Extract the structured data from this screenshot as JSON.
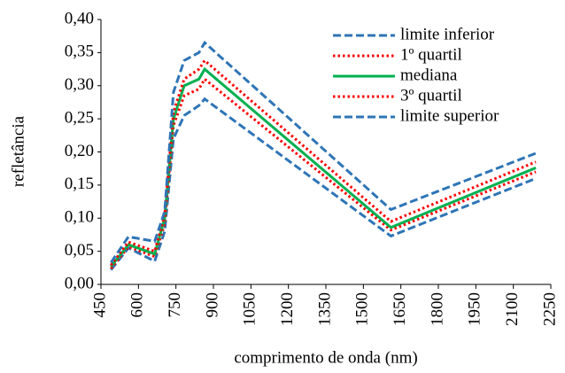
{
  "chart_data": {
    "type": "line",
    "x_label": "comprimento de onda (nm)",
    "y_label": "refletância",
    "x": [
      490,
      560,
      665,
      705,
      740,
      783,
      842,
      865,
      1610,
      2190
    ],
    "series": [
      {
        "name": "limite inferior",
        "color": "#2e75b6",
        "style": "dashed",
        "values": [
          0.022,
          0.055,
          0.035,
          0.08,
          0.22,
          0.255,
          0.27,
          0.28,
          0.073,
          0.16
        ]
      },
      {
        "name": "1º quartil",
        "color": "#ff0000",
        "style": "dotted",
        "values": [
          0.024,
          0.057,
          0.042,
          0.092,
          0.24,
          0.285,
          0.295,
          0.31,
          0.082,
          0.17
        ]
      },
      {
        "name": "mediana",
        "color": "#00b050",
        "style": "solid",
        "values": [
          0.027,
          0.06,
          0.046,
          0.1,
          0.25,
          0.3,
          0.31,
          0.325,
          0.086,
          0.176
        ]
      },
      {
        "name": "3º quartil",
        "color": "#ff0000",
        "style": "dotted",
        "values": [
          0.029,
          0.064,
          0.05,
          0.105,
          0.26,
          0.31,
          0.325,
          0.338,
          0.095,
          0.185
        ]
      },
      {
        "name": "limite superior",
        "color": "#2e75b6",
        "style": "dashed",
        "values": [
          0.033,
          0.072,
          0.065,
          0.11,
          0.29,
          0.338,
          0.35,
          0.365,
          0.113,
          0.198
        ]
      }
    ],
    "xlim": [
      450,
      2250
    ],
    "xticks": [
      450,
      600,
      750,
      900,
      1050,
      1200,
      1350,
      1500,
      1650,
      1800,
      1950,
      2100,
      2250
    ],
    "ylim": [
      0,
      0.4
    ],
    "yticks": [
      {
        "value": 0,
        "label": "0,00"
      },
      {
        "value": 0.05,
        "label": "0,05"
      },
      {
        "value": 0.1,
        "label": "0,10"
      },
      {
        "value": 0.15,
        "label": "0,15"
      },
      {
        "value": 0.2,
        "label": "0,20"
      },
      {
        "value": 0.25,
        "label": "0,25"
      },
      {
        "value": 0.3,
        "label": "0,30"
      },
      {
        "value": 0.35,
        "label": "0,35"
      },
      {
        "value": 0.4,
        "label": "0,40"
      }
    ],
    "grid": false,
    "legend": "top-right"
  }
}
